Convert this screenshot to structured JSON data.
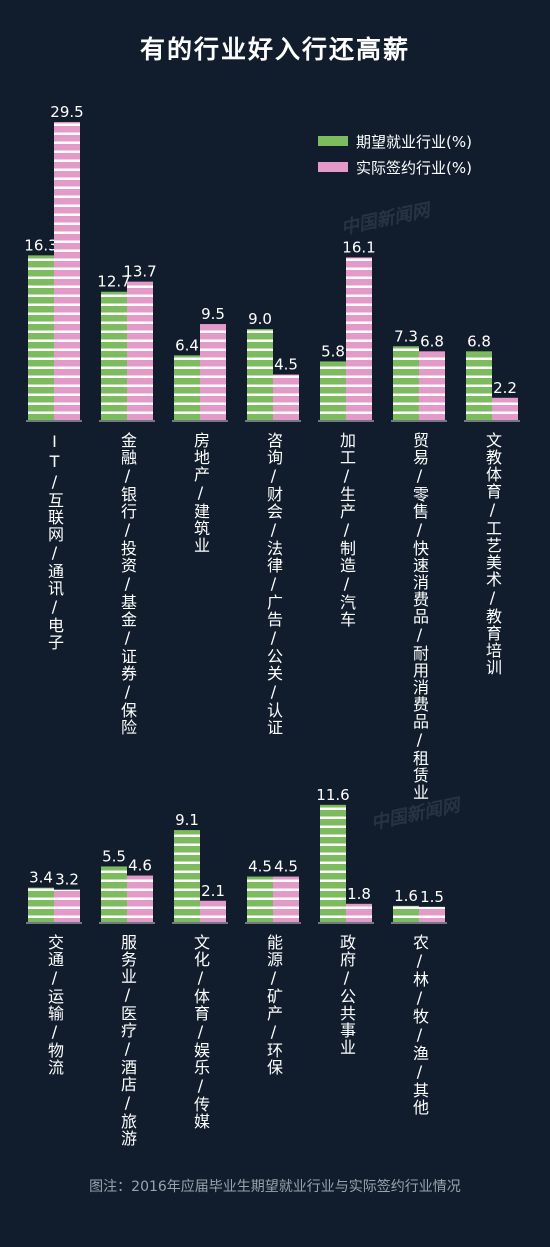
{
  "title": "有的行业好入行还高薪",
  "caption": "图注：2016年应届毕业生期望就业行业与实际签约行业情况",
  "colors": {
    "background": "#111d2c",
    "expected": "#7dbb5f",
    "actual": "#e49ac9",
    "stripe": "#ffffff"
  },
  "watermarks": [
    "中国新闻网",
    "中国新闻网"
  ],
  "chart_data": [
    {
      "type": "bar",
      "categories": [
        "IT/互联网/通讯/电子",
        "金融/银行/投资/基金/证券/保险",
        "房地产/建筑业",
        "咨询/财会/法律/广告/公关/认证",
        "加工/生产/制造/汽车",
        "贸易/零售/快速消费品/耐用消费品/租赁业",
        "文教体育/工艺美术/教育培训"
      ],
      "series": [
        {
          "name": "期望就业行业(%)",
          "values": [
            16.3,
            12.7,
            6.4,
            9.0,
            5.8,
            7.3,
            6.8
          ]
        },
        {
          "name": "实际签约行业(%)",
          "values": [
            29.5,
            13.7,
            9.5,
            4.5,
            16.1,
            6.8,
            2.2
          ]
        }
      ],
      "value_labels": {
        "expected": [
          "16.3",
          "12.7",
          "6.4",
          "9.0",
          "5.8",
          "7.3",
          "6.8"
        ],
        "actual": [
          "29.5",
          "13.7",
          "9.5",
          "4.5",
          "16.1",
          "6.8",
          "2.2"
        ]
      },
      "legend": "top-right"
    },
    {
      "type": "bar",
      "categories": [
        "交通/运输/物流",
        "服务业/医疗/酒店/旅游",
        "文化/体育/娱乐/传媒",
        "能源/矿产/环保",
        "政府/公共事业",
        "农/林/牧/渔/其他"
      ],
      "series": [
        {
          "name": "期望就业行业(%)",
          "values": [
            3.4,
            5.5,
            9.1,
            4.5,
            11.6,
            1.6
          ]
        },
        {
          "name": "实际签约行业(%)",
          "values": [
            3.2,
            4.6,
            2.1,
            4.5,
            1.8,
            1.5
          ]
        }
      ],
      "value_labels": {
        "expected": [
          "3.4",
          "5.5",
          "9.1",
          "4.5",
          "11.6",
          "1.6"
        ],
        "actual": [
          "3.2",
          "4.6",
          "2.1",
          "4.5",
          "1.8",
          "1.5"
        ]
      }
    }
  ]
}
